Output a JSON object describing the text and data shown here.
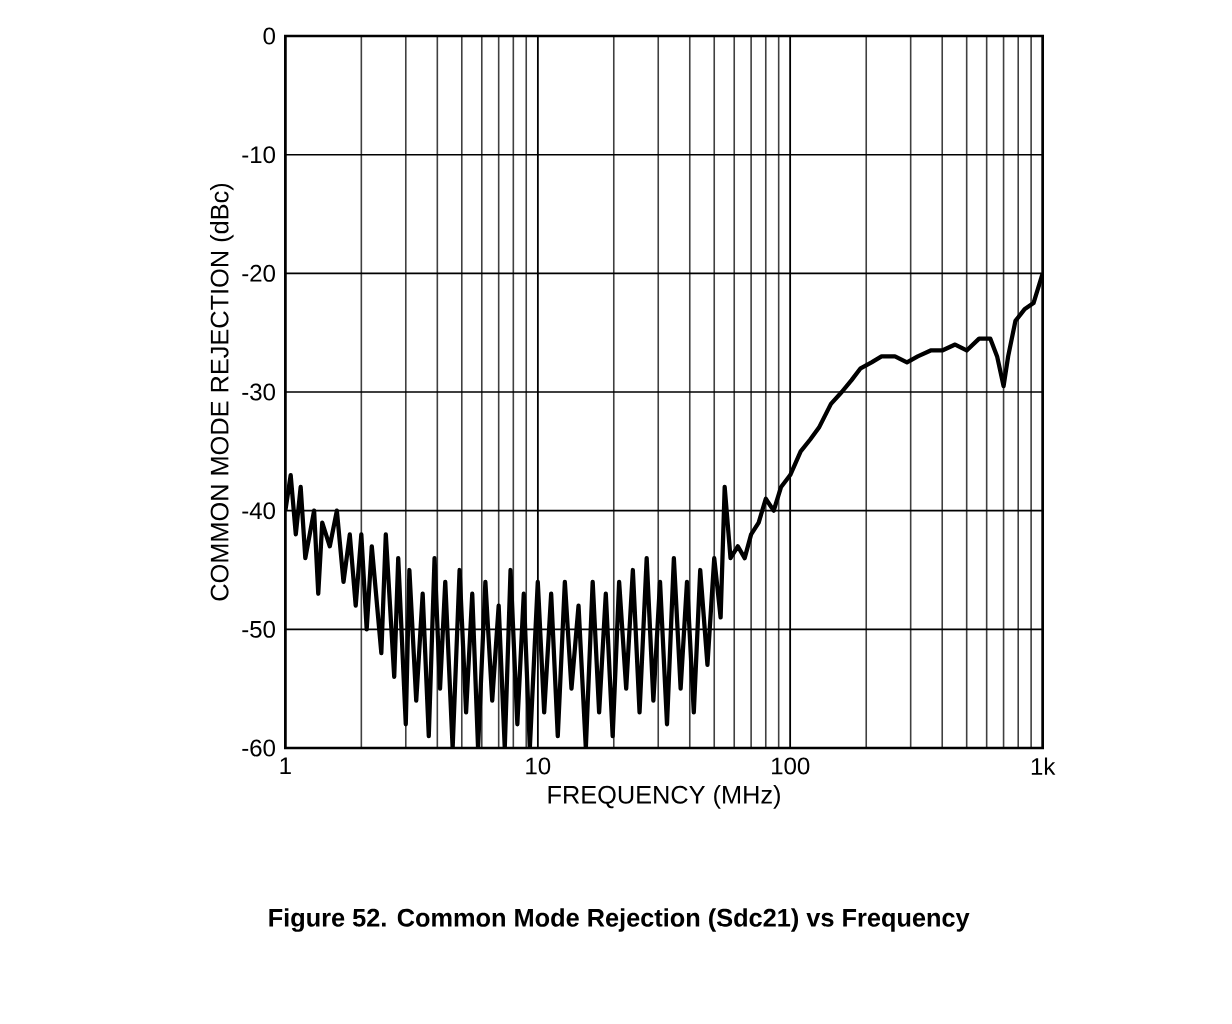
{
  "chart_data": {
    "type": "line",
    "title": "Figure 52. Common Mode Rejection (Sdc21) vs Frequency",
    "xlabel": "FREQUENCY (MHz)",
    "ylabel": "COMMON MODE REJECTION (dBc)",
    "log": "x",
    "grid": true,
    "line_style": "solid",
    "color": "#000000",
    "xlim": [
      1,
      1000
    ],
    "ylim": [
      -60,
      0
    ],
    "xticks": [
      1,
      10,
      100,
      {
        "value": 1000,
        "label": "1k"
      }
    ],
    "yticks": [
      -60,
      -50,
      -40,
      -30,
      -20,
      -10,
      0
    ],
    "x": [
      1,
      1.05,
      1.1,
      1.15,
      1.2,
      1.3,
      1.35,
      1.4,
      1.5,
      1.6,
      1.7,
      1.8,
      1.9,
      2.0,
      2.1,
      2.2,
      2.4,
      2.5,
      2.7,
      2.8,
      3.0,
      3.1,
      3.3,
      3.5,
      3.7,
      3.9,
      4.1,
      4.3,
      4.6,
      4.9,
      5.2,
      5.5,
      5.8,
      6.2,
      6.6,
      7.0,
      7.4,
      7.8,
      8.3,
      8.8,
      9.3,
      10,
      10.6,
      11.3,
      12,
      12.8,
      13.6,
      14.5,
      15.5,
      16.5,
      17.5,
      18.6,
      19.8,
      21,
      22.4,
      23.8,
      25.3,
      27,
      28.7,
      30.5,
      32.5,
      34.6,
      36.8,
      39,
      41.5,
      44,
      47,
      50,
      53,
      55,
      58,
      62,
      66,
      70,
      75,
      80,
      86,
      92,
      100,
      110,
      120,
      130,
      145,
      160,
      175,
      190,
      210,
      230,
      260,
      290,
      320,
      360,
      400,
      450,
      500,
      560,
      620,
      660,
      700,
      730,
      780,
      850,
      920,
      1000
    ],
    "values": [
      -40,
      -37,
      -42,
      -38,
      -44,
      -40,
      -47,
      -41,
      -43,
      -40,
      -46,
      -42,
      -48,
      -42,
      -50,
      -43,
      -52,
      -42,
      -54,
      -44,
      -58,
      -45,
      -56,
      -47,
      -59,
      -44,
      -55,
      -46,
      -60,
      -45,
      -57,
      -47,
      -60,
      -46,
      -56,
      -48,
      -60,
      -45,
      -58,
      -47,
      -60,
      -46,
      -57,
      -47,
      -59,
      -46,
      -55,
      -48,
      -60,
      -46,
      -57,
      -47,
      -59,
      -46,
      -55,
      -45,
      -57,
      -44,
      -56,
      -46,
      -58,
      -44,
      -55,
      -46,
      -57,
      -45,
      -53,
      -44,
      -49,
      -38,
      -44,
      -43,
      -44,
      -42,
      -41,
      -39,
      -40,
      -38,
      -37,
      -35,
      -34,
      -33,
      -31,
      -30,
      -29,
      -28,
      -27.5,
      -27,
      -27,
      -27.5,
      -27,
      -26.5,
      -26.5,
      -26,
      -26.5,
      -25.5,
      -25.5,
      -27,
      -29.5,
      -27,
      -24,
      -23,
      -22.5,
      -20
    ]
  }
}
